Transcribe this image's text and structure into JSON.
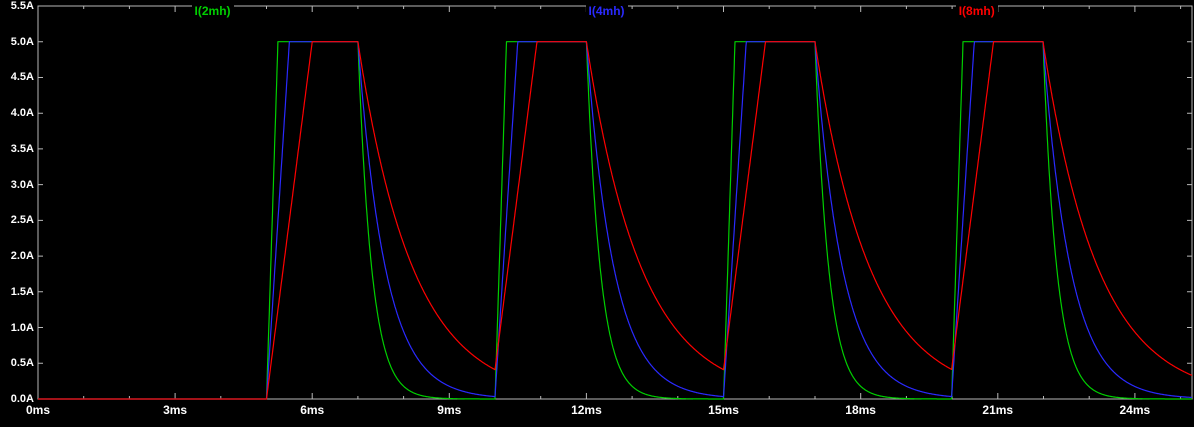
{
  "figure": {
    "bg": "#000000",
    "border_color": "#b9b9b9",
    "text_color": "#ffffff"
  },
  "legend": [
    {
      "label": "I(2mh)",
      "color": "#00cf00"
    },
    {
      "label": "I(4mh)",
      "color": "#2a2aff"
    },
    {
      "label": "I(8mh)",
      "color": "#ff0000"
    }
  ],
  "y_axis": {
    "unit": "A",
    "min": 0.0,
    "max": 5.5,
    "step": 0.5,
    "ticks": [
      "5.5A",
      "5.0A",
      "4.5A",
      "4.0A",
      "3.5A",
      "3.0A",
      "2.5A",
      "2.0A",
      "1.5A",
      "1.0A",
      "0.5A",
      "0.0A"
    ]
  },
  "x_axis": {
    "unit": "ms",
    "min": 0,
    "max": 25.25,
    "step_major": 3,
    "step_minor": 1,
    "ticks": [
      "0ms",
      "3ms",
      "6ms",
      "9ms",
      "12ms",
      "15ms",
      "18ms",
      "21ms",
      "24ms"
    ]
  },
  "chart_data": {
    "type": "line",
    "title": "",
    "x_unit": "ms",
    "y_unit": "A",
    "xlim": [
      0,
      25.25
    ],
    "ylim": [
      0,
      5.5
    ],
    "x_ticks_ms": [
      0,
      3,
      6,
      9,
      12,
      15,
      18,
      21,
      24
    ],
    "y_ticks_A": [
      5.5,
      5.0,
      4.5,
      4.0,
      3.5,
      3.0,
      2.5,
      2.0,
      1.5,
      1.0,
      0.5,
      0.0
    ],
    "grid": false,
    "legend_position": "top",
    "pulse": {
      "on_times_ms": [
        5,
        10,
        15,
        20
      ],
      "width_ms": 2,
      "period_ms": 5,
      "amplitude_A": 5.0,
      "baseline_A": 0.0
    },
    "series": [
      {
        "name": "I(2mh)",
        "color": "#00cf00",
        "rise_ms": 0.25,
        "decay_tau_ms": 0.3
      },
      {
        "name": "I(4mh)",
        "color": "#2a2aff",
        "rise_ms": 0.5,
        "decay_tau_ms": 0.6
      },
      {
        "name": "I(8mh)",
        "color": "#ff0000",
        "rise_ms": 1.0,
        "decay_tau_ms": 1.2
      }
    ],
    "description": "Inductor current pulse train: zero until 5ms, then 2ms-wide pulses every 5ms. During each pulse the current ramps linearly to a 5.0A clamp (ramp time proportional to inductance: 2mH fastest, 8mH slowest); between pulses it decays exponentially with time constant proportional to inductance (2mH fastest decay, 8mH slowest)."
  }
}
